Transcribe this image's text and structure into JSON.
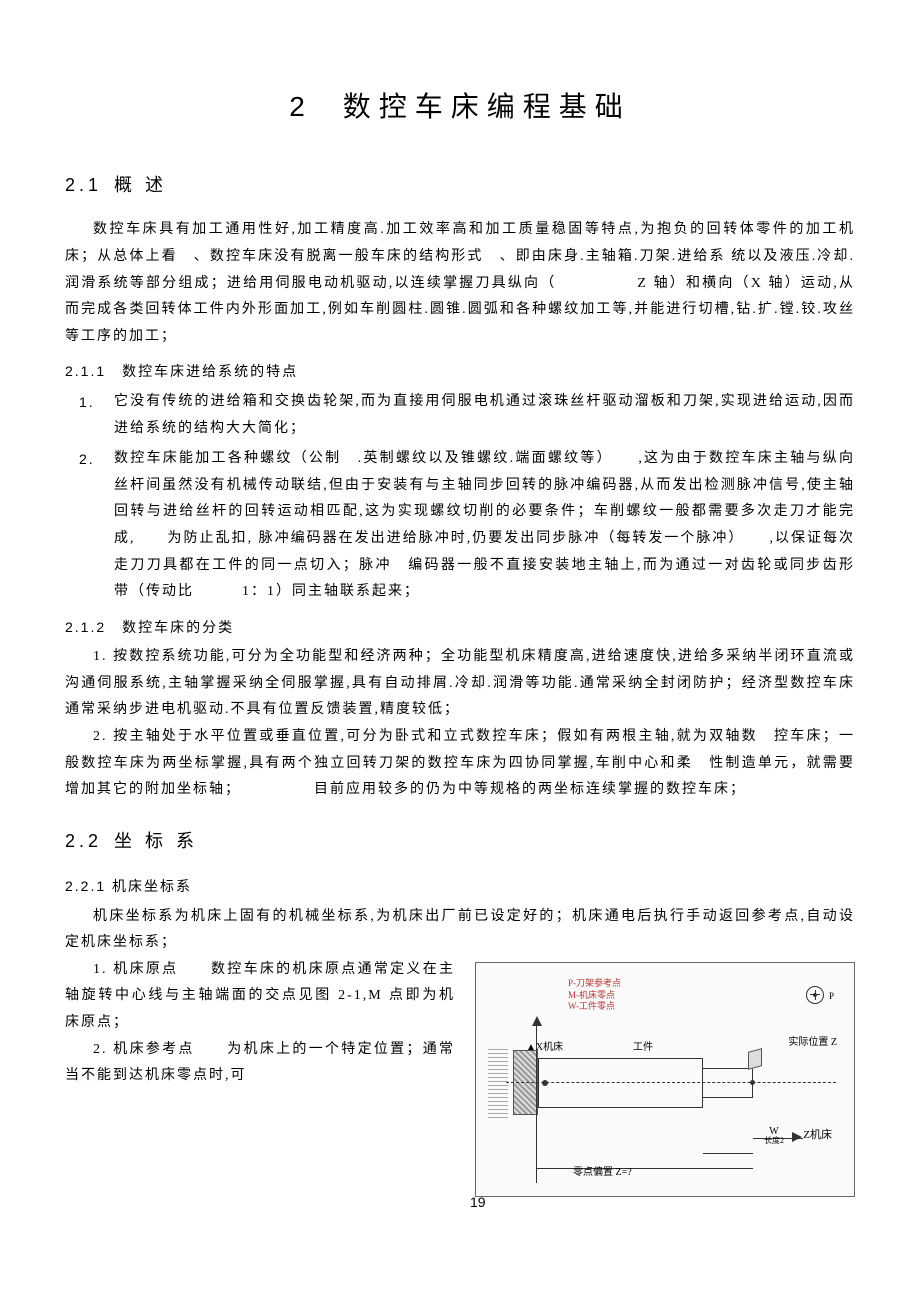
{
  "chapter": {
    "num": "2",
    "title": "数控车床编程基础"
  },
  "sec21": {
    "num": "2.1",
    "title": "概 述"
  },
  "p21_intro": "数控车床具有加工通用性好,加工精度高.加工效率高和加工质量稳固等特点,为抱负的回转体零件的加工机床；从总体上看　、数控车床没有脱离一般车床的结构形式　、即由床身.主轴箱.刀架.进给系 统以及液压.冷却.润滑系统等部分组成；进给用伺服电动机驱动,以连续掌握刀具纵向（　　　　　Z 轴）和横向（X 轴）运动,从而完成各类回转体工件内外形面加工,例如车削圆柱.圆锥.圆弧和各种螺纹加工等,并能进行切槽,钻.扩.镗.铰.攻丝等工序的加工；",
  "sub211": "2.1.1　数控车床进给系统的特点",
  "li211": [
    "它没有传统的进给箱和交换齿轮架,而为直接用伺服电机通过滚珠丝杆驱动溜板和刀架,实现进给运动,因而进给系统的结构大大简化；",
    "数控车床能加工各种螺纹（公制　.英制螺纹以及锥螺纹.端面螺纹等）　　,这为由于数控车床主轴与纵向丝杆间虽然没有机械传动联结,但由于安装有与主轴同步回转的脉冲编码器,从而发出检测脉冲信号,使主轴回转与进给丝杆的回转运动相匹配,这为实现螺纹切削的必要条件；车削螺纹一般都需要多次走刀才能完成,　　为防止乱扣, 脉冲编码器在发出进给脉冲时,仍要发出同步脉冲（每转发一个脉冲）　　,以保证每次走刀刀具都在工件的同一点切入；脉冲　编码器一般不直接安装地主轴上,而为通过一对齿轮或同步齿形带（传动比　　　1：1）同主轴联系起来；"
  ],
  "sub212": "2.1.2　数控车床的分类",
  "p212a": "1. 按数控系统功能,可分为全功能型和经济两种；全功能型机床精度高,进给速度快,进给多采纳半闭环直流或沟通伺服系统,主轴掌握采纳全伺服掌握,具有自动排屑.冷却.润滑等功能.通常采纳全封闭防护；经济型数控车床通常采纳步进电机驱动.不具有位置反馈装置,精度较低；",
  "p212b": "2. 按主轴处于水平位置或垂直位置,可分为卧式和立式数控车床；假如有两根主轴,就为双轴数　控车床；一般数控车床为两坐标掌握,具有两个独立回转刀架的数控车床为四协同掌握,车削中心和柔　性制造单元，就需要增加其它的附加坐标轴；　　　　　目前应用较多的仍为中等规格的两坐标连续掌握的数控车床；",
  "sec22": {
    "num": "2.2",
    "title": "坐 标 系"
  },
  "sub221": "2.2.1 机床坐标系",
  "p221a": "机床坐标系为机床上固有的机械坐标系,为机床出厂前已设定好的；机床通电后执行手动返回参考点,自动设定机床坐标系；",
  "p221b": "1. 机床原点　　数控车床的机床原点通常定义在主轴旋转中心线与主轴端面的交点见图 2-1,M 点即为机床原点；",
  "p221c": "2. 机床参考点　　为机床上的一个特定位置；通常当不能到达机床零点时,可",
  "page": "19",
  "fig": {
    "legend_p": "P-刀架参考点",
    "legend_m": "M-机床零点",
    "legend_w": "W-工件零点",
    "xaxis": "X机床",
    "zaxis": "Z机床",
    "piece": "工件",
    "pos": "实际位置 Z",
    "w": "W",
    "wlen": "长度2",
    "offset": "零点偏置 Z=?",
    "p": "P"
  }
}
